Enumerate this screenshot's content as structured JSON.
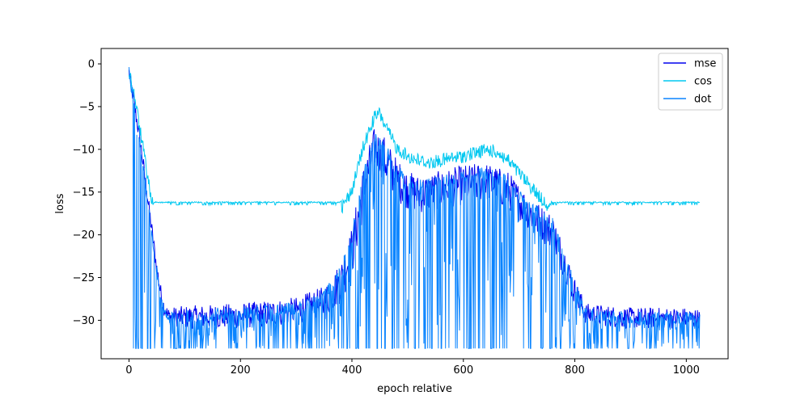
{
  "chart_data": {
    "type": "line",
    "title": "",
    "xlabel": "epoch relative",
    "ylabel": "loss",
    "xlim": [
      -50,
      1075
    ],
    "ylim": [
      -34.5,
      1.8
    ],
    "xticks": [
      0,
      200,
      400,
      600,
      800,
      1000
    ],
    "yticks": [
      0,
      -5,
      -10,
      -15,
      -20,
      -25,
      -30
    ],
    "grid": false,
    "legend_position": "top-right",
    "colors": {
      "mse": "#0000ee",
      "cos": "#00c8f0",
      "dot": "#0a84ff"
    },
    "series": [
      {
        "name": "mse",
        "envelope_x": [
          0,
          10,
          20,
          30,
          40,
          50,
          60,
          70,
          100,
          200,
          300,
          350,
          380,
          400,
          420,
          440,
          460,
          480,
          500,
          520,
          560,
          600,
          640,
          680,
          720,
          760,
          780,
          800,
          820,
          900,
          1000,
          1025
        ],
        "envelope_top": [
          0,
          -4,
          -8,
          -13,
          -18,
          -23,
          -27,
          -28.5,
          -28.3,
          -28.0,
          -27.3,
          -26.0,
          -23.0,
          -19.0,
          -12.0,
          -7.5,
          -8.5,
          -11.0,
          -12.5,
          -13.0,
          -12.5,
          -11.8,
          -11.5,
          -12.5,
          -15.5,
          -17.5,
          -21.0,
          -25.0,
          -28.0,
          -28.5,
          -28.5,
          -28.7
        ],
        "envelope_bottom": [
          -2,
          -6,
          -10,
          -15,
          -20,
          -25,
          -29,
          -30.5,
          -31.0,
          -31.0,
          -30.5,
          -30.0,
          -28.0,
          -25.0,
          -18.0,
          -12.0,
          -14.0,
          -16.0,
          -17.0,
          -17.5,
          -17.0,
          -16.5,
          -16.0,
          -17.0,
          -19.5,
          -22.0,
          -25.0,
          -28.5,
          -30.5,
          -31.0,
          -31.0,
          -31.0
        ]
      },
      {
        "name": "cos",
        "envelope_x": [
          0,
          10,
          20,
          30,
          40,
          45,
          100,
          200,
          300,
          380,
          400,
          420,
          440,
          450,
          460,
          480,
          500,
          520,
          540,
          560,
          600,
          640,
          660,
          680,
          700,
          720,
          740,
          760,
          800,
          900,
          1000,
          1025
        ],
        "envelope_top": [
          0,
          -3,
          -7,
          -11,
          -15,
          -16.2,
          -16.2,
          -16.2,
          -16.2,
          -16.2,
          -14.0,
          -9.0,
          -5.5,
          -5.0,
          -6.5,
          -9.0,
          -10.0,
          -10.5,
          -10.8,
          -10.5,
          -10.0,
          -9.3,
          -9.5,
          -10.5,
          -12.0,
          -13.5,
          -15.0,
          -16.2,
          -16.2,
          -16.2,
          -16.2,
          -16.2
        ],
        "floor": -16.5
      },
      {
        "name": "dot",
        "envelope_x": [
          0,
          10,
          20,
          30,
          40,
          50,
          60,
          70,
          100,
          200,
          300,
          350,
          380,
          400,
          420,
          440,
          460,
          480,
          500,
          520,
          560,
          600,
          640,
          680,
          720,
          760,
          780,
          800,
          820,
          900,
          1000,
          1025
        ],
        "envelope_top": [
          0,
          -4.5,
          -8.5,
          -13.5,
          -18.5,
          -23.5,
          -27.5,
          -29.0,
          -28.8,
          -28.3,
          -27.8,
          -26.5,
          -23.5,
          -19.5,
          -12.5,
          -8.0,
          -9.0,
          -11.5,
          -13.0,
          -13.5,
          -13.0,
          -12.3,
          -12.0,
          -13.0,
          -16.0,
          -18.0,
          -21.5,
          -25.5,
          -28.5,
          -29.0,
          -29.0,
          -29.2
        ],
        "floor": -33.3
      }
    ]
  }
}
